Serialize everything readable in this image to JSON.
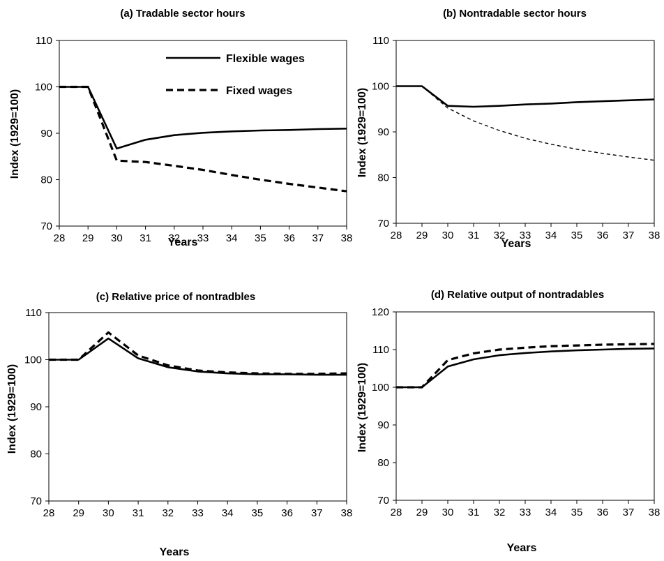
{
  "chart_data": [
    {
      "type": "line",
      "title": "(a) Tradable sector hours",
      "xlabel": "Years",
      "ylabel": "Index (1929=100)",
      "x": [
        28,
        29,
        30,
        31,
        32,
        33,
        34,
        35,
        36,
        37,
        38
      ],
      "ylim": [
        70,
        110
      ],
      "yticks": [
        70,
        80,
        90,
        100,
        110
      ],
      "legend": "top-right",
      "series": [
        {
          "name": "Flexible wages",
          "style": "solid",
          "values": [
            100,
            100,
            86.7,
            88.6,
            89.6,
            90.1,
            90.4,
            90.6,
            90.7,
            90.9,
            91.0
          ]
        },
        {
          "name": "Fixed wages",
          "style": "dashed",
          "values": [
            100,
            100,
            84.1,
            83.8,
            83.0,
            82.1,
            81.0,
            80.0,
            79.1,
            78.3,
            77.5
          ]
        }
      ]
    },
    {
      "type": "line",
      "title": "(b) Nontradable sector hours",
      "xlabel": "Years",
      "ylabel": "Index (1929=100)",
      "x": [
        28,
        29,
        30,
        31,
        32,
        33,
        34,
        35,
        36,
        37,
        38
      ],
      "ylim": [
        70,
        110
      ],
      "yticks": [
        70,
        80,
        90,
        100,
        110
      ],
      "series": [
        {
          "style": "solid",
          "values": [
            100,
            100,
            95.7,
            95.5,
            95.7,
            96.0,
            96.2,
            96.5,
            96.7,
            96.9,
            97.1
          ]
        },
        {
          "style": "dotted",
          "values": [
            100,
            100,
            95.2,
            92.4,
            90.3,
            88.6,
            87.3,
            86.2,
            85.3,
            84.5,
            83.8
          ]
        }
      ]
    },
    {
      "type": "line",
      "title": "(c) Relative price of nontradbles",
      "xlabel": "Years",
      "ylabel": "Index (1929=100)",
      "x": [
        28,
        29,
        30,
        31,
        32,
        33,
        34,
        35,
        36,
        37,
        38
      ],
      "ylim": [
        70,
        110
      ],
      "yticks": [
        70,
        80,
        90,
        100,
        110
      ],
      "series": [
        {
          "style": "solid",
          "values": [
            100,
            100,
            104.5,
            100.3,
            98.4,
            97.5,
            97.1,
            96.9,
            96.9,
            96.8,
            96.8
          ]
        },
        {
          "style": "dashed",
          "values": [
            100,
            100,
            105.8,
            100.9,
            98.8,
            97.7,
            97.3,
            97.1,
            97.0,
            97.0,
            97.1
          ]
        }
      ]
    },
    {
      "type": "line",
      "title": "(d) Relative output of nontradables",
      "xlabel": "Years",
      "ylabel": "Index (1929=100)",
      "x": [
        28,
        29,
        30,
        31,
        32,
        33,
        34,
        35,
        36,
        37,
        38
      ],
      "ylim": [
        70,
        120
      ],
      "yticks": [
        70,
        80,
        90,
        100,
        110,
        120
      ],
      "series": [
        {
          "style": "solid",
          "values": [
            100,
            100,
            105.5,
            107.4,
            108.5,
            109.1,
            109.5,
            109.8,
            110.0,
            110.2,
            110.3
          ]
        },
        {
          "style": "dashed",
          "values": [
            100,
            100,
            107.2,
            109.0,
            110.0,
            110.5,
            110.9,
            111.1,
            111.3,
            111.4,
            111.5
          ]
        }
      ]
    }
  ]
}
